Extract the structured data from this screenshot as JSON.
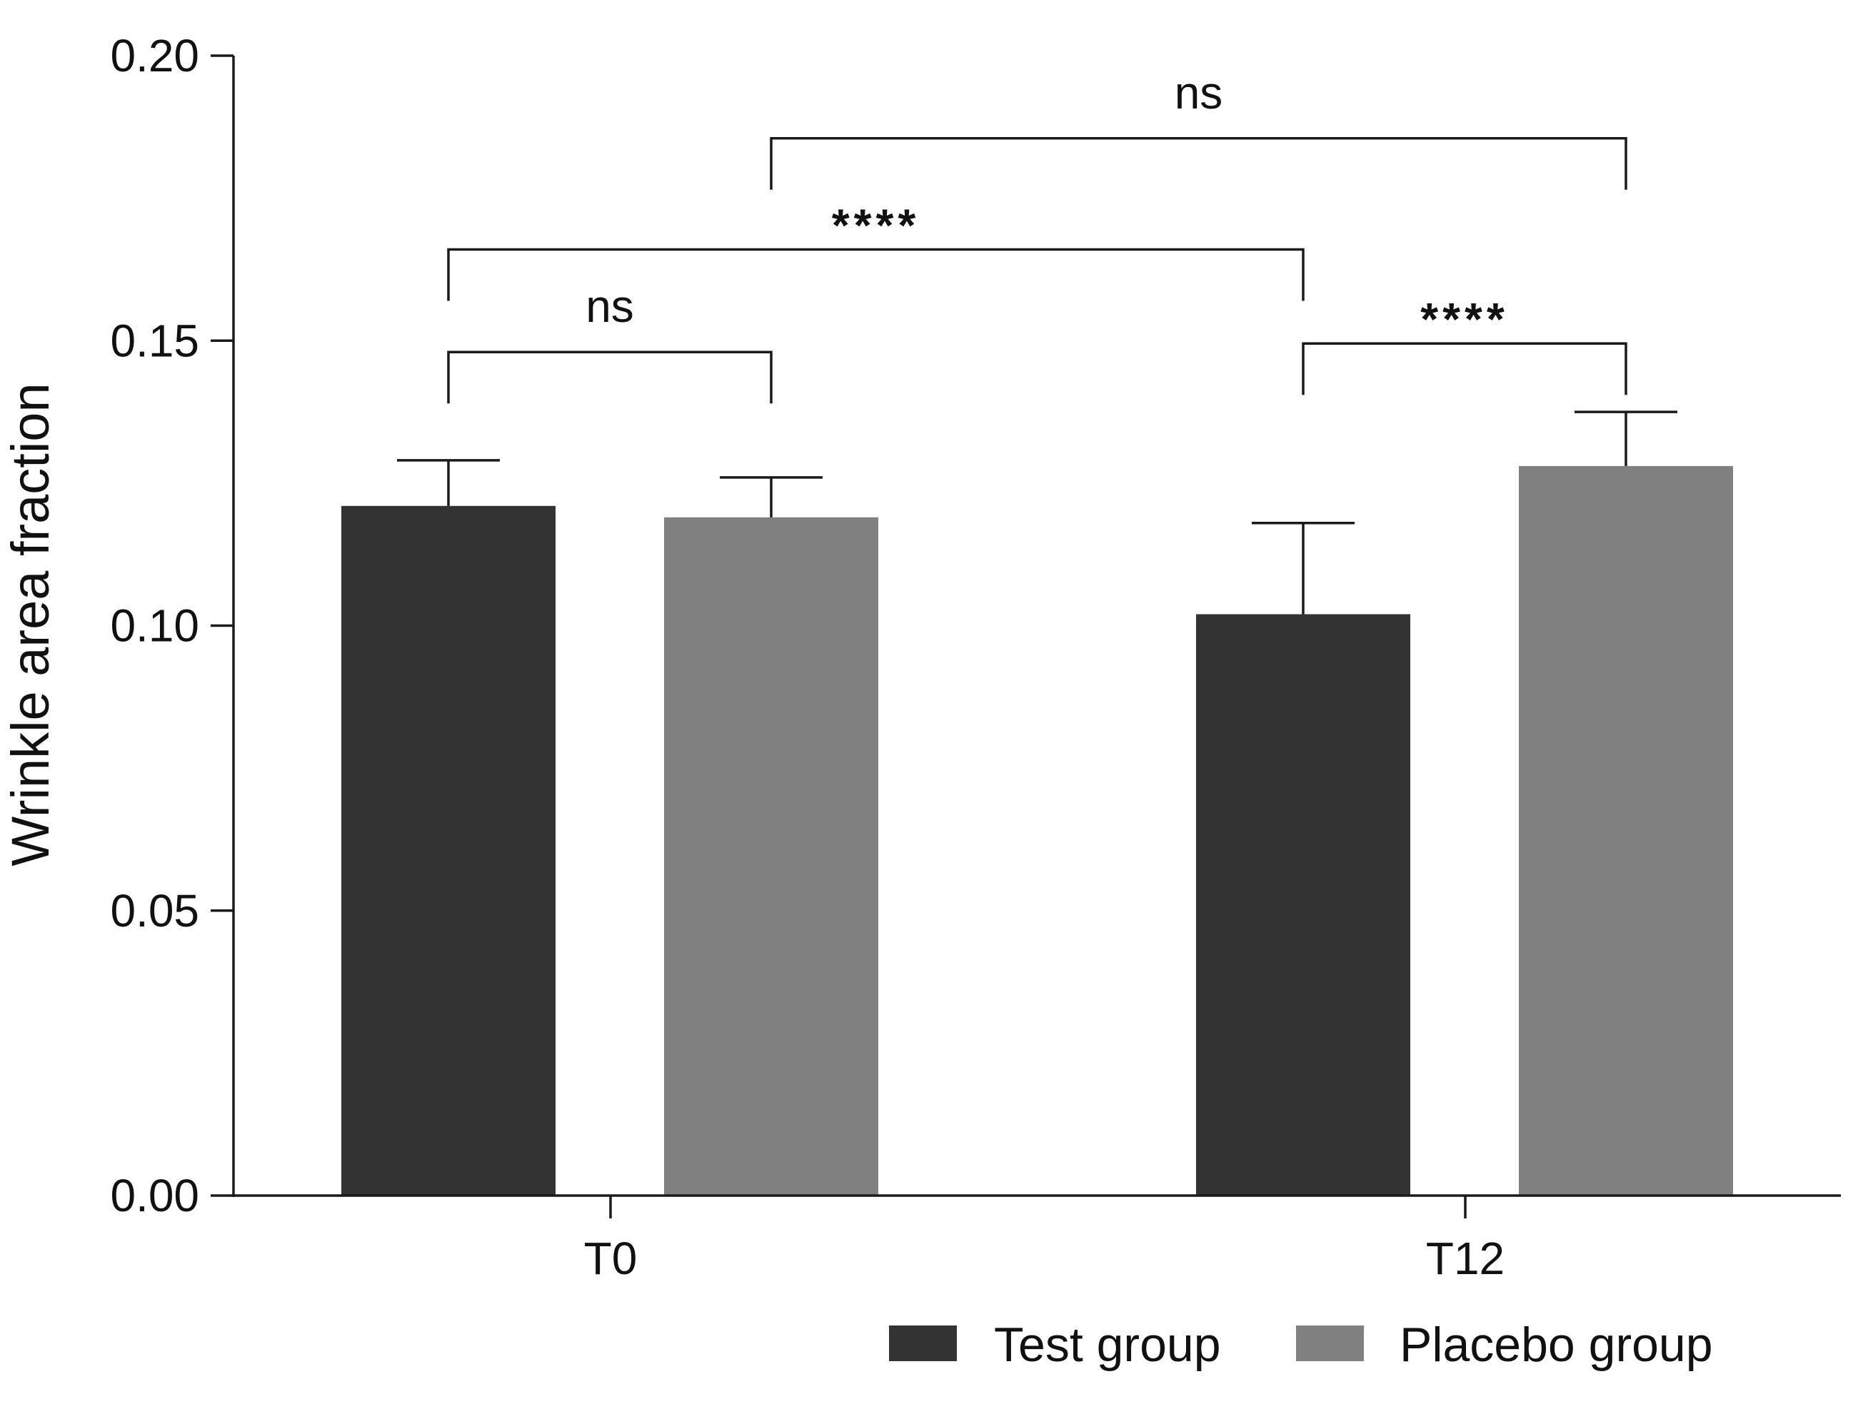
{
  "chart_data": {
    "type": "bar",
    "title": "",
    "xlabel": "",
    "ylabel": "Wrinkle area fraction",
    "ylim": [
      0,
      0.2
    ],
    "yticks": [
      "0.00",
      "0.05",
      "0.10",
      "0.15",
      "0.20"
    ],
    "ytick_values": [
      0,
      0.05,
      0.1,
      0.15,
      0.2
    ],
    "categories": [
      "T0",
      "T12"
    ],
    "series": [
      {
        "name": "Test group",
        "color": "#333333",
        "values": [
          0.121,
          0.102
        ],
        "errors": [
          0.008,
          0.016
        ]
      },
      {
        "name": "Placebo group",
        "color": "#808080",
        "values": [
          0.119,
          0.128
        ],
        "errors": [
          0.007,
          0.0095
        ]
      }
    ],
    "legend": {
      "position": "bottom-right"
    },
    "significance": [
      {
        "label": "ns",
        "from": {
          "category": 0,
          "series": 0
        },
        "to": {
          "category": 0,
          "series": 1
        },
        "level": 0.148
      },
      {
        "label": "****",
        "from": {
          "category": 0,
          "series": 0
        },
        "to": {
          "category": 1,
          "series": 0
        },
        "level": 0.166
      },
      {
        "label": "ns",
        "from": {
          "category": 0,
          "series": 1
        },
        "to": {
          "category": 1,
          "series": 1
        },
        "level": 0.1855
      },
      {
        "label": "****",
        "from": {
          "category": 1,
          "series": 0
        },
        "to": {
          "category": 1,
          "series": 1
        },
        "level": 0.1495
      }
    ]
  }
}
